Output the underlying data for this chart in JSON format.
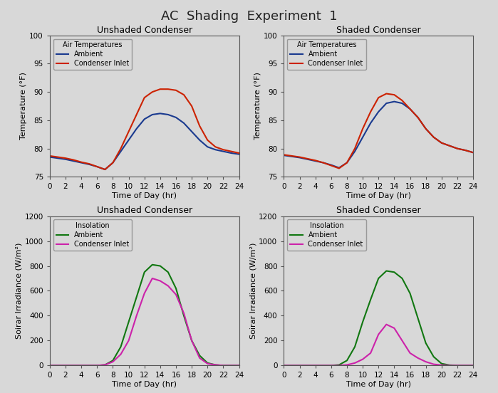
{
  "title": "AC  Shading  Experiment  1",
  "background_color": "#d8d8d8",
  "plot_bg_color": "#d8d8d8",
  "temp_time": [
    0,
    1,
    2,
    3,
    4,
    5,
    6,
    7,
    8,
    9,
    10,
    11,
    12,
    13,
    14,
    15,
    16,
    17,
    18,
    19,
    20,
    21,
    22,
    23,
    24
  ],
  "unshaded_ambient_temp": [
    78.5,
    78.3,
    78.1,
    77.8,
    77.5,
    77.2,
    76.8,
    76.3,
    77.5,
    79.5,
    81.5,
    83.5,
    85.2,
    86.0,
    86.2,
    86.0,
    85.5,
    84.5,
    83.0,
    81.5,
    80.3,
    79.8,
    79.5,
    79.2,
    79.0
  ],
  "unshaded_condenser_temp": [
    78.7,
    78.5,
    78.3,
    78.0,
    77.6,
    77.3,
    76.8,
    76.3,
    77.5,
    80.0,
    83.0,
    86.0,
    89.0,
    90.0,
    90.5,
    90.5,
    90.3,
    89.5,
    87.5,
    84.0,
    81.5,
    80.3,
    79.8,
    79.5,
    79.2
  ],
  "shaded_ambient_temp": [
    78.8,
    78.6,
    78.4,
    78.1,
    77.8,
    77.5,
    77.1,
    76.6,
    77.5,
    79.5,
    82.0,
    84.5,
    86.5,
    88.0,
    88.3,
    88.0,
    87.0,
    85.5,
    83.5,
    82.0,
    81.0,
    80.5,
    80.0,
    79.7,
    79.3
  ],
  "shaded_condenser_temp": [
    78.9,
    78.7,
    78.5,
    78.2,
    77.9,
    77.5,
    77.0,
    76.5,
    77.5,
    80.0,
    83.5,
    86.5,
    89.0,
    89.7,
    89.5,
    88.5,
    87.0,
    85.5,
    83.5,
    82.0,
    81.0,
    80.5,
    80.0,
    79.7,
    79.3
  ],
  "sol_time": [
    0,
    1,
    2,
    3,
    4,
    5,
    6,
    7,
    8,
    9,
    10,
    11,
    12,
    13,
    14,
    15,
    16,
    17,
    18,
    19,
    20,
    21,
    22,
    23,
    24
  ],
  "unshaded_ambient_sol": [
    0,
    0,
    0,
    0,
    0,
    0,
    0,
    5,
    40,
    150,
    350,
    550,
    750,
    810,
    800,
    750,
    620,
    400,
    200,
    80,
    20,
    5,
    0,
    0,
    0
  ],
  "unshaded_condenser_sol": [
    0,
    0,
    0,
    0,
    0,
    0,
    0,
    5,
    30,
    90,
    200,
    400,
    580,
    700,
    680,
    640,
    570,
    420,
    200,
    60,
    15,
    5,
    0,
    0,
    0
  ],
  "shaded_ambient_sol": [
    0,
    0,
    0,
    0,
    0,
    0,
    0,
    5,
    40,
    150,
    350,
    530,
    700,
    760,
    750,
    700,
    580,
    380,
    180,
    70,
    15,
    3,
    0,
    0,
    0
  ],
  "shaded_condenser_sol": [
    0,
    0,
    0,
    0,
    0,
    0,
    0,
    0,
    5,
    20,
    50,
    100,
    250,
    330,
    300,
    200,
    100,
    60,
    30,
    10,
    3,
    0,
    0,
    0,
    0
  ],
  "temp_ylim": [
    75,
    100
  ],
  "temp_yticks": [
    75,
    80,
    85,
    90,
    95,
    100
  ],
  "sol_ylim": [
    0,
    1200
  ],
  "sol_yticks": [
    0,
    200,
    400,
    600,
    800,
    1000,
    1200
  ],
  "xlim": [
    0,
    24
  ],
  "xticks": [
    0,
    2,
    4,
    6,
    8,
    10,
    12,
    14,
    16,
    18,
    20,
    22,
    24
  ],
  "ambient_color_temp": "#1a3a8f",
  "condenser_color_temp": "#cc2200",
  "ambient_color_sol": "#117711",
  "condenser_color_sol": "#cc22aa",
  "subplot_titles": [
    "Unshaded Condenser",
    "Shaded Condenser",
    "Unshaded Condenser",
    "Shaded Condenser"
  ],
  "temp_ylabel": "Temperature (°F)",
  "sol_ylabel": "Soirar Irradiance (W/m²)",
  "xlabel": "Time of Day (hr)",
  "temp_legend_title": "Air Temperatures",
  "sol_legend_title": "Insolation",
  "legend_ambient": "Ambient",
  "legend_condenser": "Condenser Inlet"
}
